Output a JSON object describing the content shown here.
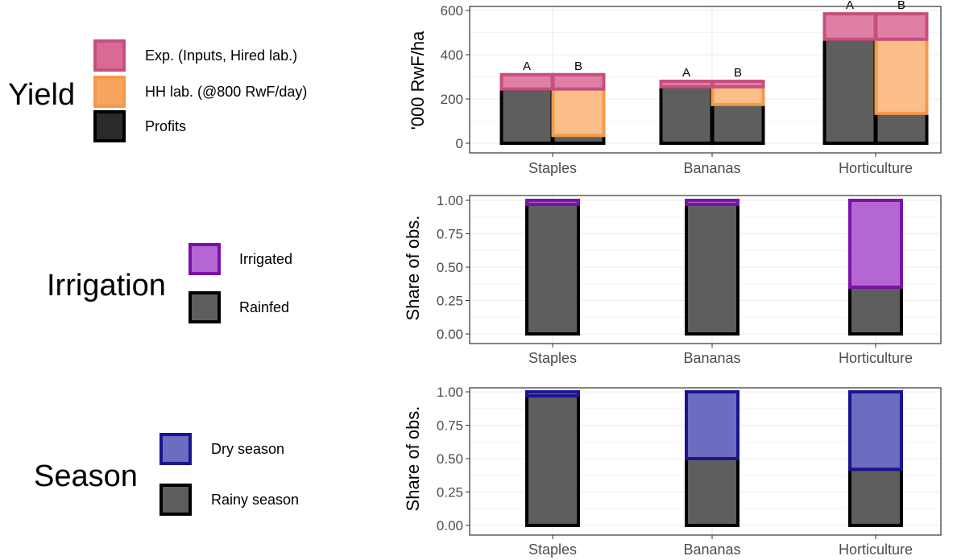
{
  "colors": {
    "profits": "#5e5e5e",
    "hh": "#fbbe89",
    "exp": "#e07fa6",
    "exp_border": "#c64f7e",
    "hh_border": "#f29a4a",
    "irrigated": "#b466d2",
    "irrigated_border": "#7b12a8",
    "dry": "#6c6cc0",
    "dry_border": "#1b148e",
    "outline": "#000000",
    "grid": "#ebebeb",
    "panel_border": "#333333"
  },
  "legends": [
    {
      "title": "Yield",
      "items": [
        {
          "label": "Exp. (Inputs, Hired lab.)",
          "fill": "#d86a95",
          "border": "#c64f7e"
        },
        {
          "label": "HH lab. (@800 RwF/day)",
          "fill": "#f7a55e",
          "border": "#f5984a"
        },
        {
          "label": "Profits",
          "fill": "#2b2b2b",
          "border": "#000000"
        }
      ]
    },
    {
      "title": "Irrigation",
      "items": [
        {
          "label": "Irrigated",
          "fill": "#b466d2",
          "border": "#7b12a8"
        },
        {
          "label": "Rainfed",
          "fill": "#5e5e5e",
          "border": "#000000"
        }
      ]
    },
    {
      "title": "Season",
      "items": [
        {
          "label": "Dry season",
          "fill": "#6c6cc0",
          "border": "#1b148e"
        },
        {
          "label": "Rainy season",
          "fill": "#5e5e5e",
          "border": "#000000"
        }
      ]
    }
  ],
  "chart_data": [
    {
      "type": "bar",
      "stacked": true,
      "ylabel": "'000 RwF/ha",
      "ylim": [
        0,
        680
      ],
      "yticks": [
        0,
        200,
        400,
        600
      ],
      "categories": [
        "Staples",
        "Bananas",
        "Horticulture"
      ],
      "bars": [
        {
          "category": "Staples",
          "label": "A",
          "profits": 245,
          "hh_labour": 0,
          "expenses": 65
        },
        {
          "category": "Staples",
          "label": "B",
          "profits": 35,
          "hh_labour": 210,
          "expenses": 65
        },
        {
          "category": "Bananas",
          "label": "A",
          "profits": 255,
          "hh_labour": 0,
          "expenses": 25
        },
        {
          "category": "Bananas",
          "label": "B",
          "profits": 175,
          "hh_labour": 80,
          "expenses": 25
        },
        {
          "category": "Horticulture",
          "label": "A",
          "profits": 470,
          "hh_labour": 0,
          "expenses": 115
        },
        {
          "category": "Horticulture",
          "label": "B",
          "profits": 135,
          "hh_labour": 335,
          "expenses": 115
        }
      ]
    },
    {
      "type": "bar",
      "stacked": true,
      "ylabel": "Share of obs.",
      "ylim": [
        0,
        1.05
      ],
      "yticks": [
        "0.00",
        "0.25",
        "0.50",
        "0.75",
        "1.00"
      ],
      "categories": [
        "Staples",
        "Bananas",
        "Horticulture"
      ],
      "series": [
        {
          "name": "Rainfed",
          "values": [
            0.97,
            0.97,
            0.35
          ]
        },
        {
          "name": "Irrigated",
          "values": [
            0.03,
            0.03,
            0.65
          ]
        }
      ]
    },
    {
      "type": "bar",
      "stacked": true,
      "ylabel": "Share of obs.",
      "ylim": [
        0,
        1.05
      ],
      "yticks": [
        "0.00",
        "0.25",
        "0.50",
        "0.75",
        "1.00"
      ],
      "categories": [
        "Staples",
        "Bananas",
        "Horticulture"
      ],
      "series": [
        {
          "name": "Rainy season",
          "values": [
            0.97,
            0.5,
            0.42
          ]
        },
        {
          "name": "Dry season",
          "values": [
            0.03,
            0.5,
            0.58
          ]
        }
      ]
    }
  ]
}
